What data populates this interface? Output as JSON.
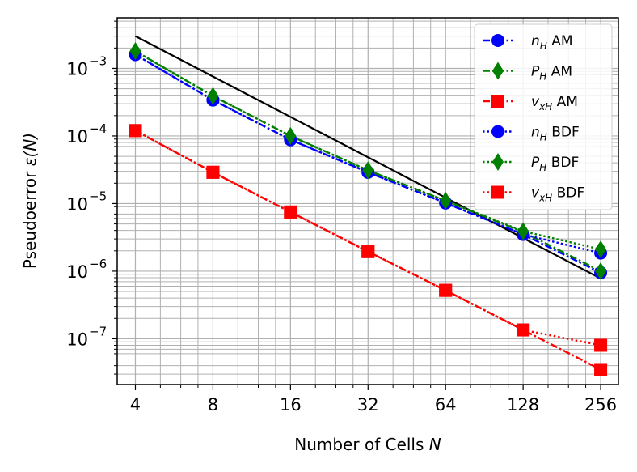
{
  "chart_data": {
    "type": "line",
    "xlabel": "Number of Cells",
    "xlabel_var": "N",
    "ylabel": "Pseudoerror",
    "ylabel_var": "ε(N)",
    "x_scale": "log2",
    "y_scale": "log10",
    "xlim": [
      3.4,
      300
    ],
    "ylim": [
      2.1e-08,
      0.0056
    ],
    "x_ticks": [
      4,
      8,
      16,
      32,
      64,
      128,
      256
    ],
    "x_tick_labels": [
      "4",
      "8",
      "16",
      "32",
      "64",
      "128",
      "256"
    ],
    "y_ticks": [
      1e-07,
      1e-06,
      1e-05,
      0.0001,
      0.001
    ],
    "y_tick_labels": [
      {
        "base": "10",
        "exp": "−7"
      },
      {
        "base": "10",
        "exp": "−6"
      },
      {
        "base": "10",
        "exp": "−5"
      },
      {
        "base": "10",
        "exp": "−4"
      },
      {
        "base": "10",
        "exp": "−3"
      }
    ],
    "grid": true,
    "legend_position": "upper-right",
    "x": [
      4,
      8,
      16,
      32,
      64,
      128,
      256
    ],
    "series": [
      {
        "name": "AM",
        "var": "n",
        "sub": "H",
        "color": "#0000ff",
        "marker": "circle",
        "dash": "dashdot",
        "values": [
          0.0016,
          0.00034,
          8.8e-05,
          2.9e-05,
          1.02e-05,
          3.5e-06,
          9.5e-07
        ]
      },
      {
        "name": "AM",
        "var": "P",
        "sub": "H",
        "color": "#008000",
        "marker": "diamond",
        "dash": "dashdot",
        "values": [
          0.0018,
          0.00039,
          0.0001,
          3.1e-05,
          1.1e-05,
          3.8e-06,
          1e-06
        ]
      },
      {
        "name": "AM",
        "var": "v",
        "sub": "xH",
        "color": "#ff0000",
        "marker": "square",
        "dash": "dashdot",
        "values": [
          0.00012,
          2.9e-05,
          7.5e-06,
          1.95e-06,
          5.2e-07,
          1.35e-07,
          3.5e-08
        ]
      },
      {
        "name": "BDF",
        "var": "n",
        "sub": "H",
        "color": "#0000ff",
        "marker": "circle",
        "dash": "dotted",
        "values": [
          0.0016,
          0.00034,
          8.8e-05,
          2.9e-05,
          1.02e-05,
          3.5e-06,
          1.85e-06
        ]
      },
      {
        "name": "BDF",
        "var": "P",
        "sub": "H",
        "color": "#008000",
        "marker": "diamond",
        "dash": "dotted",
        "values": [
          0.0018,
          0.00039,
          0.0001,
          3.1e-05,
          1.1e-05,
          3.9e-06,
          2.1e-06
        ]
      },
      {
        "name": "BDF",
        "var": "v",
        "sub": "xH",
        "color": "#ff0000",
        "marker": "square",
        "dash": "dotted",
        "values": [
          0.00012,
          2.9e-05,
          7.5e-06,
          1.95e-06,
          5.2e-07,
          1.35e-07,
          8e-08
        ]
      }
    ],
    "reference_line": {
      "color": "#000000",
      "x": [
        4,
        256
      ],
      "y": [
        0.003,
        7.8e-07
      ]
    }
  }
}
